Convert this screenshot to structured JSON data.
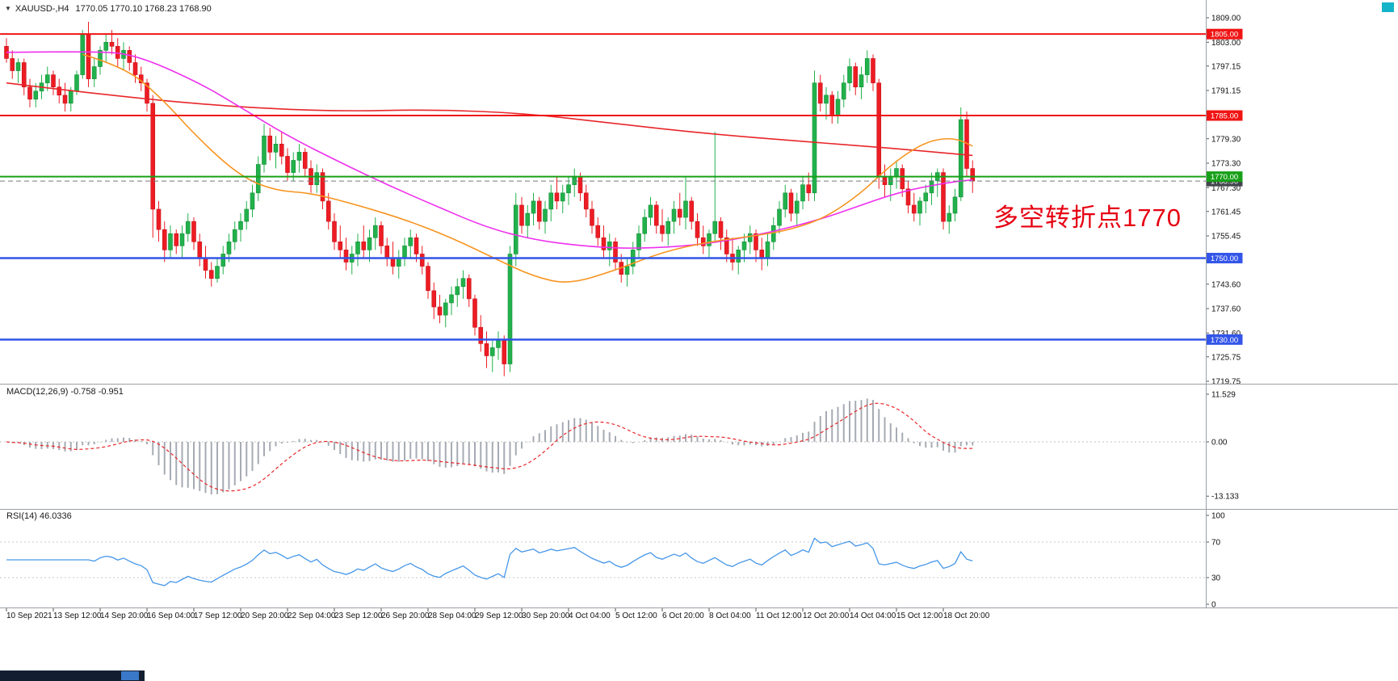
{
  "titlebar": {
    "symbol": "XAUUSD-,H4",
    "quotes": "1770.05 1770.10 1768.23 1768.90"
  },
  "icons": {
    "symbol_dropdown": "▼"
  },
  "annotation": {
    "text": "多空转折点1770",
    "color": "#e60012"
  },
  "panels": {
    "macd": {
      "label": "MACD(12,26,9) -0.758 -0.951"
    },
    "rsi": {
      "label": "RSI(14) 46.0336"
    }
  },
  "chart_data": {
    "type": "candlestick",
    "symbol": "XAUUSD-",
    "timeframe": "H4",
    "title": "XAUUSD-,H4 1770.05 1770.10 1768.23 1768.90",
    "ylim": [
      1719.2,
      1813.4
    ],
    "grid": false,
    "colors": {
      "up": "#22b14c",
      "up_border": "#149138",
      "down": "#ed1c24",
      "down_border": "#c8151c",
      "histogram": "#a6abb3",
      "macd_signal": "#e8262a",
      "rsi_line": "#4596e8"
    },
    "current_price": 1768.9,
    "h_lines": [
      {
        "name": "resistance-1805",
        "price": 1805.0,
        "color": "#f01414",
        "width": 2
      },
      {
        "name": "resistance-1785",
        "price": 1785.0,
        "color": "#f01414",
        "width": 2
      },
      {
        "name": "pivot-1770",
        "price": 1770.0,
        "color": "#18a018",
        "width": 2
      },
      {
        "name": "support-1750",
        "price": 1750.0,
        "color": "#3355e8",
        "width": 2.5
      },
      {
        "name": "support-1730",
        "price": 1730.0,
        "color": "#3355e8",
        "width": 2.5
      }
    ],
    "badges": [
      {
        "value": "1805.00",
        "price": 1805.0,
        "color": "#f01414"
      },
      {
        "value": "1785.00",
        "price": 1785.0,
        "color": "#f01414"
      },
      {
        "value": "1768.90",
        "price": 1768.9,
        "color": "#43464c"
      },
      {
        "value": "1770.00",
        "price": 1770.0,
        "color": "#18a018"
      },
      {
        "value": "1750.00",
        "price": 1750.0,
        "color": "#3355e8"
      },
      {
        "value": "1730.00",
        "price": 1730.0,
        "color": "#3355e8"
      }
    ],
    "price_ticks": [
      "1809.00",
      "1803.00",
      "1797.15",
      "1791.15",
      "1779.30",
      "1773.30",
      "1767.30",
      "1761.45",
      "1755.45",
      "1743.60",
      "1737.60",
      "1731.60",
      "1725.75",
      "1719.75"
    ],
    "macd_scale": [
      "11.529",
      "0.00",
      "-13.133"
    ],
    "rsi_scale": [
      "100",
      "70",
      "30",
      "0"
    ],
    "time_labels": [
      "10 Sep 2021",
      "13 Sep 12:00",
      "14 Sep 20:00",
      "16 Sep 04:00",
      "17 Sep 12:00",
      "20 Sep 20:00",
      "22 Sep 04:00",
      "23 Sep 12:00",
      "26 Sep 20:00",
      "28 Sep 04:00",
      "29 Sep 12:00",
      "30 Sep 20:00",
      "4 Oct 04:00",
      "5 Oct 12:00",
      "6 Oct 20:00",
      "8 Oct 04:00",
      "11 Oct 12:00",
      "12 Oct 20:00",
      "14 Oct 04:00",
      "15 Oct 12:00",
      "18 Oct 20:00"
    ],
    "indicators": {
      "macd": {
        "fast": 12,
        "slow": 26,
        "signal": 9,
        "value": -0.758,
        "signal_value": -0.951,
        "range": [
          -13.133,
          11.529
        ]
      },
      "rsi": {
        "period": 14,
        "value": 46.0336,
        "range": [
          0,
          100
        ],
        "levels": [
          30,
          70
        ]
      }
    },
    "ma_lines": [
      {
        "name": "ma-slow-red",
        "color": "#e8262a",
        "points": [
          [
            0,
            1793
          ],
          [
            20,
            1789.5
          ],
          [
            40,
            1787
          ],
          [
            57,
            1786
          ],
          [
            73,
            1786.5
          ],
          [
            89,
            1785.5
          ],
          [
            104,
            1783
          ],
          [
            120,
            1780.5
          ],
          [
            137,
            1778.5
          ],
          [
            151,
            1777
          ],
          [
            165,
            1775.2
          ]
        ]
      },
      {
        "name": "ma-mid-magenta",
        "color": "#ee30ee",
        "points": [
          [
            0,
            1800.5
          ],
          [
            15,
            1800.8
          ],
          [
            22,
            1800
          ],
          [
            33,
            1793
          ],
          [
            40,
            1787
          ],
          [
            48,
            1780
          ],
          [
            57,
            1773.5
          ],
          [
            65,
            1768
          ],
          [
            73,
            1763
          ],
          [
            82,
            1757.5
          ],
          [
            90,
            1754.5
          ],
          [
            98,
            1753
          ],
          [
            106,
            1752.3
          ],
          [
            115,
            1752.8
          ],
          [
            123,
            1754.2
          ],
          [
            131,
            1756.5
          ],
          [
            139,
            1759.5
          ],
          [
            145,
            1762.5
          ],
          [
            151,
            1765.5
          ],
          [
            156,
            1767.3
          ],
          [
            162,
            1768.8
          ],
          [
            165,
            1769.2
          ]
        ]
      },
      {
        "name": "ma-fast-orange",
        "color": "#f79420",
        "points": [
          [
            13,
            1800
          ],
          [
            20,
            1797
          ],
          [
            26,
            1790
          ],
          [
            33,
            1779
          ],
          [
            40,
            1770
          ],
          [
            46,
            1766.5
          ],
          [
            52,
            1766
          ],
          [
            60,
            1763
          ],
          [
            68,
            1759.5
          ],
          [
            76,
            1755
          ],
          [
            84,
            1749.5
          ],
          [
            90,
            1745.5
          ],
          [
            96,
            1743.5
          ],
          [
            104,
            1747
          ],
          [
            112,
            1751.5
          ],
          [
            120,
            1754
          ],
          [
            128,
            1755.5
          ],
          [
            134,
            1757
          ],
          [
            140,
            1760
          ],
          [
            146,
            1766
          ],
          [
            150,
            1771.5
          ],
          [
            154,
            1776
          ],
          [
            158,
            1779
          ],
          [
            162,
            1779.5
          ],
          [
            165,
            1777.5
          ]
        ]
      }
    ],
    "candles": [
      [
        1802,
        1804,
        1798,
        1799
      ],
      [
        1799,
        1801,
        1794,
        1796
      ],
      [
        1796,
        1799,
        1793,
        1798
      ],
      [
        1798,
        1799,
        1790,
        1792
      ],
      [
        1792,
        1794,
        1787,
        1789
      ],
      [
        1789,
        1793,
        1787,
        1791
      ],
      [
        1791,
        1795,
        1789,
        1793
      ],
      [
        1793,
        1797,
        1791,
        1795
      ],
      [
        1795,
        1796,
        1790,
        1792
      ],
      [
        1792,
        1794,
        1788,
        1790
      ],
      [
        1790,
        1793,
        1786,
        1788
      ],
      [
        1788,
        1792,
        1786,
        1791
      ],
      [
        1791,
        1796,
        1790,
        1795
      ],
      [
        1795,
        1806,
        1794,
        1805
      ],
      [
        1805,
        1808,
        1792,
        1794
      ],
      [
        1794,
        1799,
        1792,
        1797
      ],
      [
        1797,
        1802,
        1795,
        1801
      ],
      [
        1801,
        1805,
        1798,
        1803
      ],
      [
        1803,
        1806,
        1800,
        1802
      ],
      [
        1802,
        1804,
        1797,
        1799
      ],
      [
        1799,
        1803,
        1796,
        1801
      ],
      [
        1801,
        1802,
        1796,
        1798
      ],
      [
        1798,
        1800,
        1793,
        1795
      ],
      [
        1795,
        1797,
        1791,
        1793
      ],
      [
        1793,
        1794,
        1786,
        1788
      ],
      [
        1788,
        1790,
        1755,
        1762
      ],
      [
        1762,
        1764,
        1754,
        1757
      ],
      [
        1757,
        1759,
        1749,
        1752
      ],
      [
        1752,
        1758,
        1750,
        1756
      ],
      [
        1756,
        1757,
        1751,
        1753
      ],
      [
        1753,
        1758,
        1750,
        1756
      ],
      [
        1756,
        1761,
        1754,
        1759
      ],
      [
        1759,
        1760,
        1752,
        1754
      ],
      [
        1754,
        1756,
        1748,
        1750
      ],
      [
        1750,
        1753,
        1745,
        1747
      ],
      [
        1747,
        1749,
        1743,
        1745
      ],
      [
        1745,
        1750,
        1744,
        1748
      ],
      [
        1748,
        1753,
        1746,
        1751
      ],
      [
        1751,
        1756,
        1749,
        1754
      ],
      [
        1754,
        1759,
        1752,
        1757
      ],
      [
        1757,
        1761,
        1754,
        1759
      ],
      [
        1759,
        1764,
        1757,
        1762
      ],
      [
        1762,
        1768,
        1760,
        1766
      ],
      [
        1766,
        1775,
        1764,
        1773
      ],
      [
        1773,
        1783,
        1771,
        1780
      ],
      [
        1780,
        1782,
        1774,
        1776
      ],
      [
        1776,
        1780,
        1772,
        1778
      ],
      [
        1778,
        1781,
        1773,
        1775
      ],
      [
        1775,
        1777,
        1769,
        1771
      ],
      [
        1771,
        1776,
        1769,
        1774
      ],
      [
        1774,
        1778,
        1771,
        1776
      ],
      [
        1776,
        1777,
        1770,
        1772
      ],
      [
        1772,
        1774,
        1766,
        1768
      ],
      [
        1768,
        1773,
        1766,
        1771
      ],
      [
        1771,
        1772,
        1762,
        1764
      ],
      [
        1764,
        1766,
        1757,
        1759
      ],
      [
        1759,
        1761,
        1752,
        1754
      ],
      [
        1754,
        1758,
        1750,
        1752
      ],
      [
        1752,
        1755,
        1747,
        1749
      ],
      [
        1749,
        1753,
        1746,
        1751
      ],
      [
        1751,
        1756,
        1748,
        1754
      ],
      [
        1754,
        1758,
        1750,
        1752
      ],
      [
        1752,
        1757,
        1749,
        1755
      ],
      [
        1755,
        1760,
        1752,
        1758
      ],
      [
        1758,
        1759,
        1751,
        1753
      ],
      [
        1753,
        1755,
        1748,
        1750
      ],
      [
        1750,
        1754,
        1746,
        1748
      ],
      [
        1748,
        1752,
        1745,
        1750
      ],
      [
        1750,
        1755,
        1748,
        1753
      ],
      [
        1753,
        1757,
        1750,
        1755
      ],
      [
        1755,
        1756,
        1749,
        1751
      ],
      [
        1751,
        1753,
        1746,
        1748
      ],
      [
        1748,
        1749,
        1740,
        1742
      ],
      [
        1742,
        1744,
        1735,
        1738
      ],
      [
        1738,
        1741,
        1734,
        1736
      ],
      [
        1736,
        1740,
        1733,
        1739
      ],
      [
        1739,
        1743,
        1736,
        1741
      ],
      [
        1741,
        1745,
        1738,
        1743
      ],
      [
        1743,
        1747,
        1740,
        1745
      ],
      [
        1745,
        1746,
        1738,
        1740
      ],
      [
        1740,
        1741,
        1731,
        1733
      ],
      [
        1733,
        1736,
        1727,
        1729
      ],
      [
        1729,
        1732,
        1723,
        1726
      ],
      [
        1726,
        1730,
        1722,
        1728
      ],
      [
        1728,
        1732,
        1725,
        1730
      ],
      [
        1730,
        1731,
        1721,
        1724
      ],
      [
        1724,
        1753,
        1722,
        1751
      ],
      [
        1751,
        1766,
        1748,
        1763
      ],
      [
        1763,
        1765,
        1756,
        1758
      ],
      [
        1758,
        1763,
        1755,
        1761
      ],
      [
        1761,
        1766,
        1758,
        1764
      ],
      [
        1764,
        1765,
        1757,
        1759
      ],
      [
        1759,
        1764,
        1756,
        1762
      ],
      [
        1762,
        1768,
        1759,
        1766
      ],
      [
        1766,
        1770,
        1762,
        1764
      ],
      [
        1764,
        1768,
        1761,
        1766
      ],
      [
        1766,
        1770,
        1763,
        1768
      ],
      [
        1768,
        1772,
        1765,
        1770
      ],
      [
        1770,
        1771,
        1764,
        1766
      ],
      [
        1766,
        1768,
        1760,
        1762
      ],
      [
        1762,
        1764,
        1756,
        1758
      ],
      [
        1758,
        1760,
        1753,
        1755
      ],
      [
        1755,
        1758,
        1750,
        1752
      ],
      [
        1752,
        1756,
        1748,
        1754
      ],
      [
        1754,
        1755,
        1747,
        1749
      ],
      [
        1749,
        1751,
        1744,
        1746
      ],
      [
        1746,
        1750,
        1743,
        1748
      ],
      [
        1748,
        1754,
        1746,
        1752
      ],
      [
        1752,
        1758,
        1750,
        1756
      ],
      [
        1756,
        1762,
        1754,
        1760
      ],
      [
        1760,
        1765,
        1758,
        1763
      ],
      [
        1763,
        1764,
        1756,
        1758
      ],
      [
        1758,
        1762,
        1754,
        1756
      ],
      [
        1756,
        1760,
        1753,
        1759
      ],
      [
        1759,
        1764,
        1756,
        1762
      ],
      [
        1762,
        1766,
        1758,
        1760
      ],
      [
        1760,
        1770,
        1757,
        1764
      ],
      [
        1764,
        1765,
        1757,
        1759
      ],
      [
        1759,
        1761,
        1753,
        1755
      ],
      [
        1755,
        1758,
        1751,
        1753
      ],
      [
        1753,
        1757,
        1750,
        1756
      ],
      [
        1756,
        1781,
        1754,
        1759
      ],
      [
        1759,
        1760,
        1752,
        1755
      ],
      [
        1755,
        1757,
        1749,
        1751
      ],
      [
        1751,
        1755,
        1747,
        1749
      ],
      [
        1749,
        1753,
        1746,
        1752
      ],
      [
        1752,
        1756,
        1749,
        1754
      ],
      [
        1754,
        1758,
        1751,
        1756
      ],
      [
        1756,
        1757,
        1749,
        1752
      ],
      [
        1752,
        1755,
        1747,
        1750
      ],
      [
        1750,
        1756,
        1748,
        1754
      ],
      [
        1754,
        1760,
        1752,
        1758
      ],
      [
        1758,
        1764,
        1756,
        1762
      ],
      [
        1762,
        1768,
        1760,
        1766
      ],
      [
        1766,
        1767,
        1759,
        1761
      ],
      [
        1761,
        1766,
        1758,
        1764
      ],
      [
        1764,
        1770,
        1762,
        1768
      ],
      [
        1768,
        1771,
        1764,
        1766
      ],
      [
        1766,
        1796,
        1764,
        1793
      ],
      [
        1793,
        1795,
        1786,
        1788
      ],
      [
        1788,
        1792,
        1784,
        1790
      ],
      [
        1790,
        1791,
        1783,
        1785
      ],
      [
        1785,
        1791,
        1783,
        1789
      ],
      [
        1789,
        1795,
        1787,
        1793
      ],
      [
        1793,
        1799,
        1791,
        1797
      ],
      [
        1797,
        1798,
        1790,
        1792
      ],
      [
        1792,
        1797,
        1789,
        1795
      ],
      [
        1795,
        1801,
        1793,
        1799
      ],
      [
        1799,
        1800,
        1791,
        1793
      ],
      [
        1793,
        1794,
        1767,
        1770
      ],
      [
        1770,
        1773,
        1765,
        1768
      ],
      [
        1768,
        1772,
        1764,
        1770
      ],
      [
        1770,
        1774,
        1767,
        1772
      ],
      [
        1772,
        1773,
        1765,
        1767
      ],
      [
        1767,
        1769,
        1761,
        1763
      ],
      [
        1763,
        1766,
        1759,
        1761
      ],
      [
        1761,
        1765,
        1758,
        1764
      ],
      [
        1764,
        1768,
        1761,
        1766
      ],
      [
        1766,
        1771,
        1763,
        1769
      ],
      [
        1769,
        1772,
        1765,
        1771
      ],
      [
        1771,
        1772,
        1757,
        1759
      ],
      [
        1759,
        1763,
        1756,
        1761
      ],
      [
        1761,
        1767,
        1759,
        1765
      ],
      [
        1765,
        1787,
        1764,
        1784
      ],
      [
        1784,
        1786,
        1770,
        1772
      ],
      [
        1772,
        1774,
        1766,
        1768.9
      ]
    ]
  }
}
